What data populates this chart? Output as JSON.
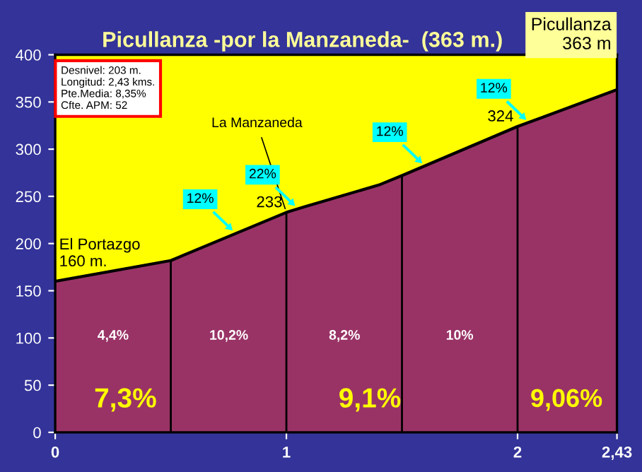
{
  "chart_data": {
    "type": "area",
    "title": "Picullanza -por la Manzaneda-  (363 m.)",
    "x": [
      0,
      0.5,
      1,
      1.08,
      1.4,
      1.5,
      2,
      2.43
    ],
    "series": [
      {
        "color": "#993366",
        "values": [
          160,
          182,
          233,
          239,
          262,
          272,
          324,
          363
        ]
      }
    ],
    "xlim": [
      0,
      2.43
    ],
    "ylim": [
      0,
      400
    ],
    "xticks": [
      0,
      1,
      2,
      {
        "value": 2.43,
        "label": "2,43"
      }
    ],
    "yticks": [
      0,
      50,
      100,
      150,
      200,
      250,
      300,
      350,
      400
    ],
    "grid": false,
    "legend": false,
    "ref_lines": [
      {
        "axis": "x",
        "value": 0.5,
        "color": "#000000"
      },
      {
        "axis": "x",
        "value": 1,
        "color": "#000000"
      },
      {
        "axis": "x",
        "value": 1.5,
        "color": "#000000"
      },
      {
        "axis": "x",
        "value": 2,
        "color": "#000000"
      }
    ],
    "annotations": [
      "Desnivel: 203 m.\nLongitud: 2,43 kms.\nPte.Media: 8,35%\nCfte. APM: 52",
      "Picullanza\n363 m",
      {
        "text": "El Portazgo\n160 m.",
        "x": 0,
        "y": 160
      },
      {
        "text": "La Manzaneda",
        "x": 1,
        "y": 233
      },
      {
        "text": "233",
        "x": 1,
        "y": 233
      },
      {
        "text": "324",
        "x": 2,
        "y": 324
      },
      {
        "text": "12%",
        "x": 0.78,
        "y": 211
      },
      {
        "text": "22%",
        "x": 1.05,
        "y": 237
      },
      {
        "text": "12%",
        "x": 1.6,
        "y": 282
      },
      {
        "text": "12%",
        "x": 2.05,
        "y": 328
      },
      "4,4%",
      "10,2%",
      "8,2%",
      "10%",
      "7,3%",
      "9,1%",
      "9,06%"
    ]
  }
}
